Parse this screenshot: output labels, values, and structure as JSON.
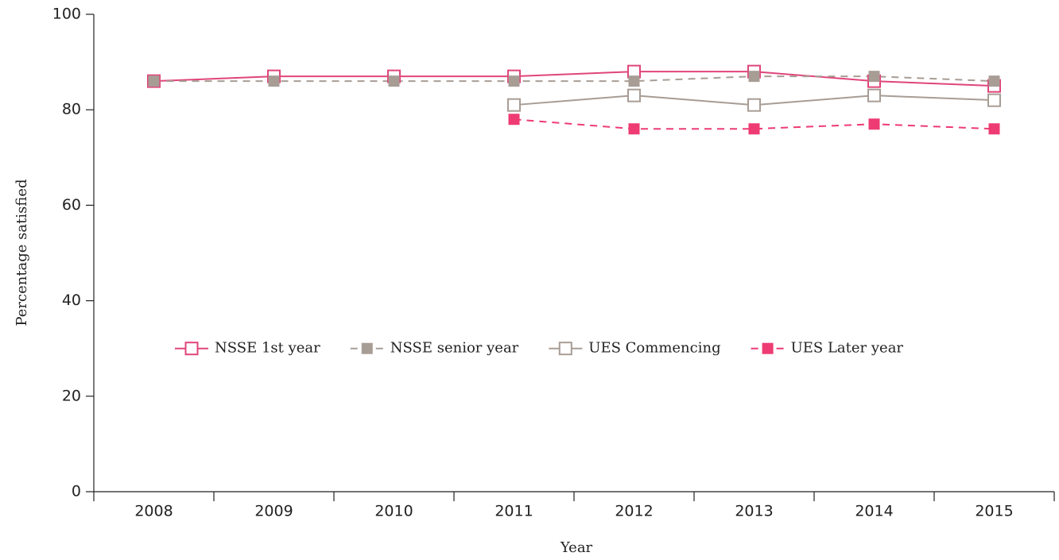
{
  "chart_data": {
    "type": "line",
    "x_label": "Year",
    "y_label": "Percentage satisfied",
    "categories": [
      "2008",
      "2009",
      "2010",
      "2011",
      "2012",
      "2013",
      "2014",
      "2015"
    ],
    "series": [
      {
        "name": "NSSE 1st year",
        "color": "#e0457b",
        "dash": "solid",
        "marker": "open",
        "values": [
          86,
          87,
          87,
          87,
          88,
          88,
          86,
          85
        ]
      },
      {
        "name": "NSSE senior year",
        "color": "#a89d95",
        "dash": "dashed",
        "marker": "filled",
        "values": [
          86,
          86,
          86,
          86,
          86,
          87,
          87,
          86
        ]
      },
      {
        "name": "UES Commencing",
        "color": "#a89d95",
        "dash": "solid",
        "marker": "open",
        "values": [
          null,
          null,
          null,
          81,
          83,
          81,
          83,
          82
        ]
      },
      {
        "name": "UES Later year",
        "color": "#ee3b73",
        "dash": "dashed",
        "marker": "filled",
        "values": [
          null,
          null,
          null,
          78,
          76,
          76,
          77,
          76
        ]
      }
    ],
    "ylim": [
      0,
      100
    ],
    "yticks": [
      0,
      20,
      40,
      60,
      80,
      100
    ],
    "grid": false,
    "legend": "center"
  }
}
